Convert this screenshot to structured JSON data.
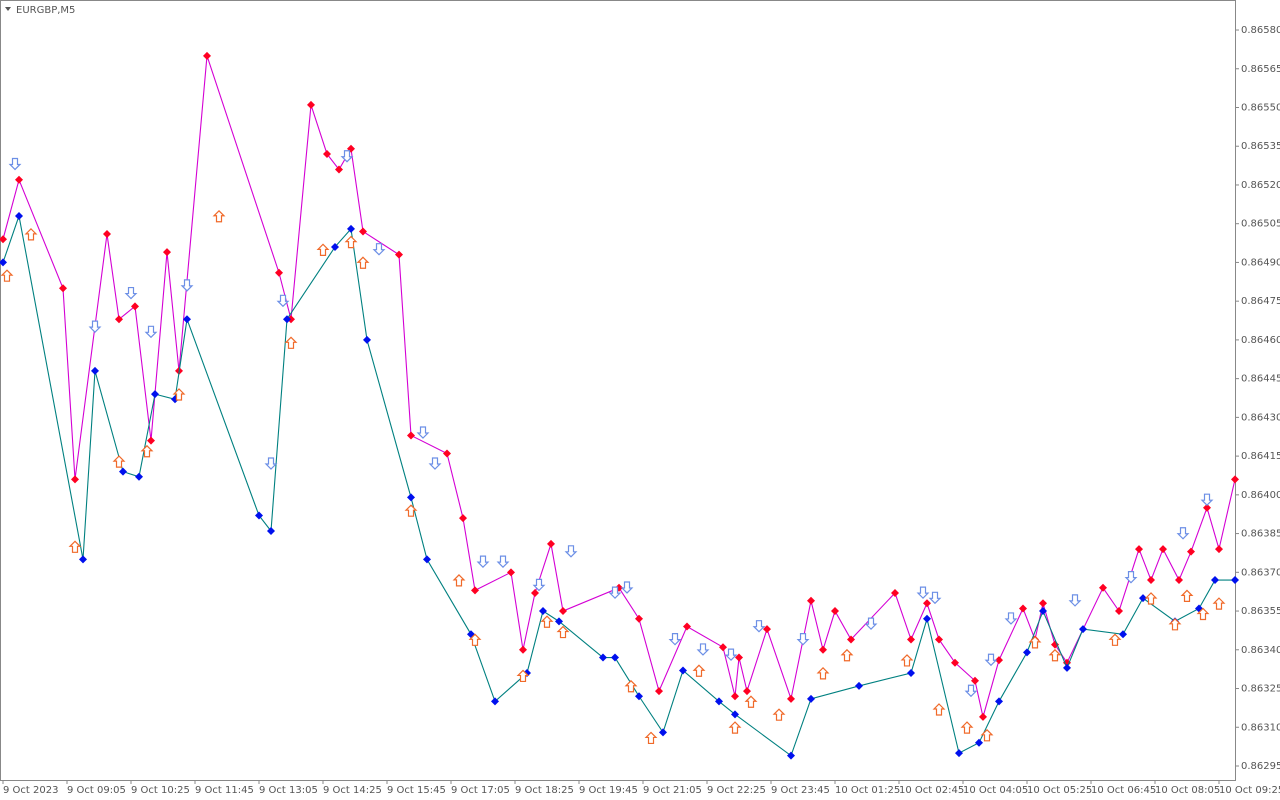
{
  "chart_data": {
    "type": "zigzag",
    "title": "EURGBP,M5",
    "xlim": [
      0,
      308
    ],
    "ylim": [
      0.8629,
      0.8659
    ],
    "grid": false,
    "xticks": [
      {
        "value": 0,
        "label": "9 Oct 2023"
      },
      {
        "value": 16,
        "label": "9 Oct 09:05"
      },
      {
        "value": 32,
        "label": "9 Oct 10:25"
      },
      {
        "value": 48,
        "label": "9 Oct 11:45"
      },
      {
        "value": 64,
        "label": "9 Oct 13:05"
      },
      {
        "value": 80,
        "label": "9 Oct 14:25"
      },
      {
        "value": 96,
        "label": "9 Oct 15:45"
      },
      {
        "value": 112,
        "label": "9 Oct 17:05"
      },
      {
        "value": 128,
        "label": "9 Oct 18:25"
      },
      {
        "value": 144,
        "label": "9 Oct 19:45"
      },
      {
        "value": 160,
        "label": "9 Oct 21:05"
      },
      {
        "value": 176,
        "label": "9 Oct 22:25"
      },
      {
        "value": 192,
        "label": "9 Oct 23:45"
      },
      {
        "value": 208,
        "label": "10 Oct 01:25"
      },
      {
        "value": 224,
        "label": "10 Oct 02:45"
      },
      {
        "value": 240,
        "label": "10 Oct 04:05"
      },
      {
        "value": 256,
        "label": "10 Oct 05:25"
      },
      {
        "value": 272,
        "label": "10 Oct 06:45"
      },
      {
        "value": 288,
        "label": "10 Oct 08:05"
      },
      {
        "value": 304,
        "label": "10 Oct 09:25"
      }
    ],
    "yticks": [
      {
        "value": 0.8658,
        "label": "0.86580"
      },
      {
        "value": 0.86565,
        "label": "0.86565"
      },
      {
        "value": 0.8655,
        "label": "0.86550"
      },
      {
        "value": 0.86535,
        "label": "0.86535"
      },
      {
        "value": 0.8652,
        "label": "0.86520"
      },
      {
        "value": 0.86505,
        "label": "0.86505"
      },
      {
        "value": 0.8649,
        "label": "0.86490"
      },
      {
        "value": 0.86475,
        "label": "0.86475"
      },
      {
        "value": 0.8646,
        "label": "0.86460"
      },
      {
        "value": 0.86445,
        "label": "0.86445"
      },
      {
        "value": 0.8643,
        "label": "0.86430"
      },
      {
        "value": 0.86415,
        "label": "0.86415"
      },
      {
        "value": 0.864,
        "label": "0.86400"
      },
      {
        "value": 0.86385,
        "label": "0.86385"
      },
      {
        "value": 0.8637,
        "label": "0.86370"
      },
      {
        "value": 0.86355,
        "label": "0.86355"
      },
      {
        "value": 0.8634,
        "label": "0.86340"
      },
      {
        "value": 0.86325,
        "label": "0.86325"
      },
      {
        "value": 0.8631,
        "label": "0.86310"
      },
      {
        "value": 0.86295,
        "label": "0.86295"
      }
    ],
    "series": [
      {
        "color": "#d400d4",
        "marker_color": "#ff0022",
        "x": [
          0,
          4,
          15,
          18,
          26,
          29,
          33,
          37,
          41,
          44,
          51,
          69,
          72,
          77,
          81,
          84,
          87,
          90,
          99,
          102,
          111,
          115,
          118,
          127,
          130,
          133,
          137,
          140,
          154,
          159,
          164,
          171,
          180,
          183,
          184,
          186,
          191,
          197,
          202,
          205,
          208,
          212,
          223,
          227,
          231,
          234,
          238,
          243,
          245,
          249,
          255,
          258,
          260,
          263,
          266,
          275,
          279,
          284,
          287,
          290,
          294,
          297,
          301,
          304,
          308
        ],
        "values": [
          0.86499,
          0.86522,
          0.8648,
          0.86406,
          0.86501,
          0.86468,
          0.86473,
          0.86421,
          0.86494,
          0.86448,
          0.8657,
          0.86486,
          0.86468,
          0.86551,
          0.86532,
          0.86526,
          0.86534,
          0.86502,
          0.86493,
          0.86423,
          0.86416,
          0.86391,
          0.86363,
          0.8637,
          0.8634,
          0.86362,
          0.86381,
          0.86355,
          0.86364,
          0.86352,
          0.86324,
          0.86349,
          0.86341,
          0.86322,
          0.86337,
          0.86324,
          0.86348,
          0.86321,
          0.86359,
          0.8634,
          0.86355,
          0.86344,
          0.86362,
          0.86344,
          0.86358,
          0.86344,
          0.86335,
          0.86328,
          0.86314,
          0.86336,
          0.86356,
          0.86344,
          0.86358,
          0.86342,
          0.86335,
          0.86364,
          0.86355,
          0.86379,
          0.86367,
          0.86379,
          0.86367,
          0.86378,
          0.86395,
          0.86379,
          0.86406
        ]
      },
      {
        "color": "#008080",
        "marker_color": "#0010ee",
        "x": [
          0,
          4,
          20,
          23,
          30,
          34,
          38,
          43,
          46,
          64,
          67,
          71,
          83,
          87,
          91,
          102,
          106,
          117,
          123,
          131,
          135,
          139,
          150,
          153,
          159,
          165,
          170,
          179,
          183,
          197,
          202,
          214,
          227,
          231,
          239,
          244,
          249,
          256,
          260,
          266,
          270,
          280,
          285,
          293,
          299,
          303,
          308
        ],
        "values": [
          0.8649,
          0.86508,
          0.86375,
          0.86448,
          0.86409,
          0.86407,
          0.86439,
          0.86437,
          0.86468,
          0.86392,
          0.86386,
          0.86468,
          0.86496,
          0.86503,
          0.8646,
          0.86399,
          0.86375,
          0.86346,
          0.8632,
          0.86331,
          0.86355,
          0.86351,
          0.86337,
          0.86337,
          0.86322,
          0.86308,
          0.86332,
          0.8632,
          0.86315,
          0.86299,
          0.86321,
          0.86326,
          0.86331,
          0.86352,
          0.863,
          0.86304,
          0.8632,
          0.86339,
          0.86355,
          0.86333,
          0.86348,
          0.86346,
          0.8636,
          0.86351,
          0.86356,
          0.86367,
          0.86367
        ]
      }
    ],
    "arrows": {
      "up": {
        "color": "#f06a2a",
        "x": [
          1,
          7,
          18,
          29,
          36,
          44,
          54,
          72,
          80,
          87,
          90,
          102,
          114,
          118,
          130,
          136,
          140,
          157,
          162,
          174,
          183,
          187,
          194,
          205,
          211,
          226,
          234,
          241,
          246,
          258,
          263,
          278,
          287,
          293,
          296,
          300,
          304
        ],
        "values": [
          0.86487,
          0.86503,
          0.86382,
          0.86415,
          0.86419,
          0.86441,
          0.8651,
          0.86461,
          0.86497,
          0.865,
          0.86492,
          0.86396,
          0.86369,
          0.86346,
          0.86332,
          0.86353,
          0.86349,
          0.86328,
          0.86308,
          0.86334,
          0.86312,
          0.86322,
          0.86317,
          0.86333,
          0.8634,
          0.86338,
          0.86319,
          0.86312,
          0.86309,
          0.86345,
          0.8634,
          0.86346,
          0.86362,
          0.86352,
          0.86363,
          0.86356,
          0.8636
        ]
      },
      "down": {
        "color": "#6c8fe6",
        "x": [
          3,
          23,
          32,
          37,
          46,
          67,
          70,
          86,
          94,
          105,
          108,
          120,
          125,
          134,
          142,
          153,
          156,
          168,
          175,
          182,
          189,
          200,
          217,
          230,
          233,
          242,
          247,
          252,
          268,
          282,
          295,
          301
        ],
        "values": [
          0.86526,
          0.86463,
          0.86476,
          0.86461,
          0.86479,
          0.8641,
          0.86473,
          0.86529,
          0.86493,
          0.86422,
          0.8641,
          0.86372,
          0.86372,
          0.86363,
          0.86376,
          0.8636,
          0.86362,
          0.86342,
          0.86338,
          0.86336,
          0.86347,
          0.86342,
          0.86348,
          0.8636,
          0.86358,
          0.86322,
          0.86334,
          0.8635,
          0.86357,
          0.86366,
          0.86383,
          0.86396
        ]
      }
    }
  }
}
